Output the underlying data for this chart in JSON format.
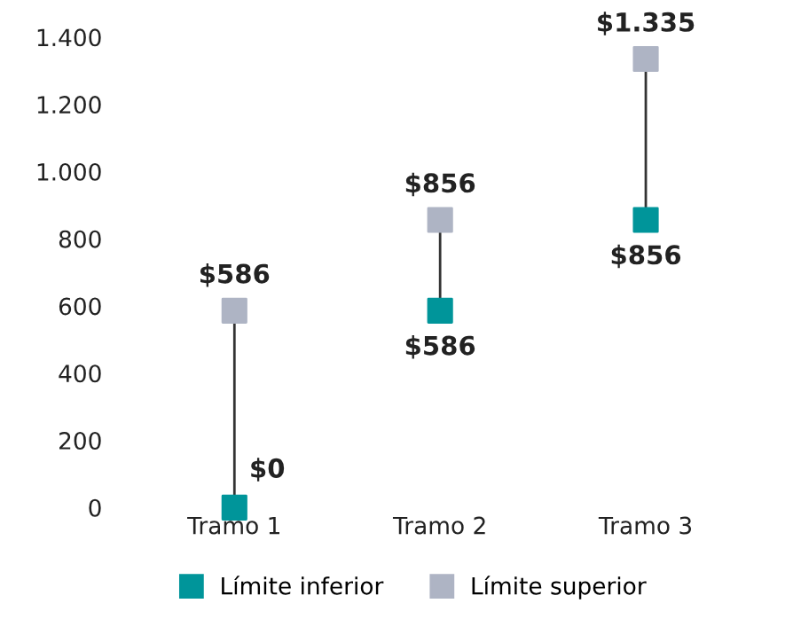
{
  "chart_data": {
    "type": "scatter",
    "categories": [
      "Tramo 1",
      "Tramo 2",
      "Tramo 3"
    ],
    "series": [
      {
        "name": "Límite inferior",
        "color": "#00959a",
        "values": [
          0,
          586,
          856
        ],
        "value_labels": [
          "$0",
          "$586",
          "$856"
        ]
      },
      {
        "name": "Límite superior",
        "color": "#aeb4c4",
        "values": [
          586,
          856,
          1335
        ],
        "value_labels": [
          "$586",
          "$856",
          "$1.335"
        ]
      }
    ],
    "ylim": [
      0,
      1400
    ],
    "yticks": [
      0,
      200,
      400,
      600,
      800,
      {
        "value": 1000,
        "label": "1.000"
      },
      {
        "value": 1200,
        "label": "1.200"
      },
      {
        "value": 1400,
        "label": "1.400"
      }
    ],
    "marker": "square",
    "grid": false,
    "legend": "bottom"
  }
}
